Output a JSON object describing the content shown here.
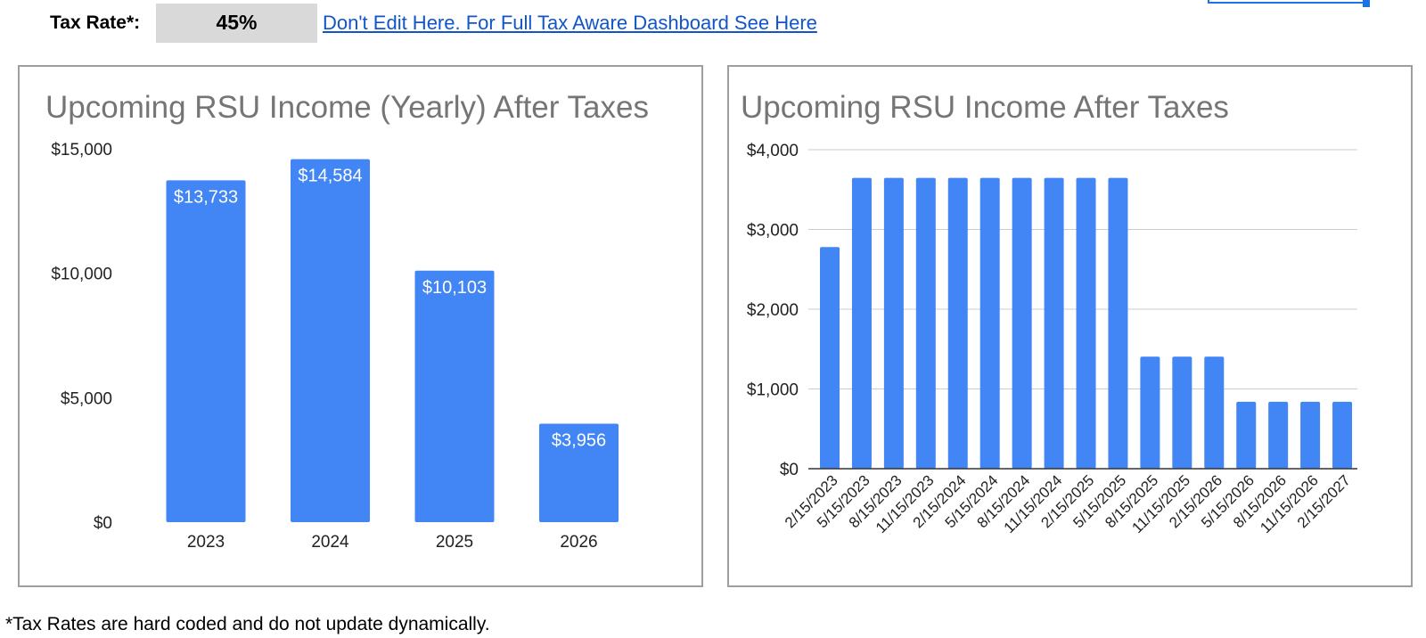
{
  "header": {
    "tax_label": "Tax Rate*:",
    "tax_value": "45%",
    "link_text": "Don't Edit Here. For Full Tax Aware Dashboard See Here"
  },
  "footnote": "*Tax Rates are hard coded and do not update dynamically.",
  "colors": {
    "bar": "#4285f4",
    "title": "#757575",
    "grid": "#cccccc"
  },
  "chart_data": [
    {
      "type": "bar",
      "title": "Upcoming RSU Income (Yearly) After Taxes",
      "categories": [
        "2023",
        "2024",
        "2025",
        "2026"
      ],
      "values": [
        13733,
        14584,
        10103,
        3956
      ],
      "data_labels": [
        "$13,733",
        "$14,584",
        "$10,103",
        "$3,956"
      ],
      "yticks": [
        "$0",
        "$5,000",
        "$10,000",
        "$15,000"
      ],
      "ytick_values": [
        0,
        5000,
        10000,
        15000
      ],
      "ylim": [
        0,
        15000
      ],
      "xlabel": "",
      "ylabel": "",
      "grid": false,
      "legend": "none"
    },
    {
      "type": "bar",
      "title": "Upcoming RSU Income After Taxes",
      "categories": [
        "2/15/2023",
        "5/15/2023",
        "8/15/2023",
        "11/15/2023",
        "2/15/2024",
        "5/15/2024",
        "8/15/2024",
        "11/15/2024",
        "2/15/2025",
        "5/15/2025",
        "8/15/2025",
        "11/15/2025",
        "2/15/2026",
        "5/15/2026",
        "8/15/2026",
        "11/15/2026",
        "2/15/2027"
      ],
      "values": [
        2780,
        3646,
        3646,
        3646,
        3646,
        3646,
        3646,
        3646,
        3646,
        3646,
        1405,
        1405,
        1405,
        840,
        840,
        840,
        840
      ],
      "yticks": [
        "$0",
        "$1,000",
        "$2,000",
        "$3,000",
        "$4,000"
      ],
      "ytick_values": [
        0,
        1000,
        2000,
        3000,
        4000
      ],
      "ylim": [
        0,
        4000
      ],
      "xlabel": "",
      "ylabel": "",
      "grid": true,
      "legend": "none"
    }
  ]
}
